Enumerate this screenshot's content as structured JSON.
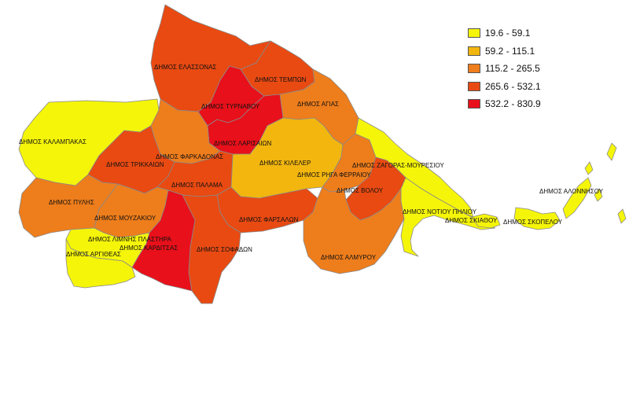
{
  "legend": {
    "classes": [
      {
        "label": "19.6 - 59.1",
        "color": "#f5f50a"
      },
      {
        "label": "59.2 - 115.1",
        "color": "#f2b60e"
      },
      {
        "label": "115.2 - 265.5",
        "color": "#ee7d1c"
      },
      {
        "label": "265.6 - 532.1",
        "color": "#e84a12"
      },
      {
        "label": "532.2 - 830.9",
        "color": "#e8101a"
      }
    ]
  },
  "municipalities": [
    {
      "id": "elassona",
      "name": "ΔΗΜΟΣ ΕΛΑΣΣΟΝΑΣ",
      "class": 3
    },
    {
      "id": "tempi",
      "name": "ΔΗΜΟΣ ΤΕΜΠΩΝ",
      "class": 3
    },
    {
      "id": "agia",
      "name": "ΔΗΜΟΣ ΑΓΙΑΣ",
      "class": 2
    },
    {
      "id": "tyrnavos",
      "name": "ΔΗΜΟΣ ΤΥΡΝΑΒΟΥ",
      "class": 4
    },
    {
      "id": "larisa",
      "name": "ΔΗΜΟΣ ΛΑΡΙΣΑΙΩΝ",
      "class": 4
    },
    {
      "id": "kalampaka",
      "name": "ΔΗΜΟΣ ΚΑΛΑΜΠΑΚΑΣ",
      "class": 0
    },
    {
      "id": "farkadona",
      "name": "ΔΗΜΟΣ ΦΑΡΚΑΔΟΝΑΣ",
      "class": 2
    },
    {
      "id": "kileler",
      "name": "ΔΗΜΟΣ ΚΙΛΕΛΕΡ",
      "class": 1
    },
    {
      "id": "trikkaion",
      "name": "ΔΗΜΟΣ ΤΡΙΚΚΑΙΩΝ",
      "class": 3
    },
    {
      "id": "zagora",
      "name": "ΔΗΜΟΣ ΖΑΓΟΡΑΣ-ΜΟΥΡΕΣΙΟΥ",
      "class": 0
    },
    {
      "id": "rigas",
      "name": "ΔΗΜΟΣ ΡΗΓΑ ΦΕΡΡΑΙΟΥ",
      "class": 2
    },
    {
      "id": "palama",
      "name": "ΔΗΜΟΣ ΠΑΛΑΜΑ",
      "class": 3
    },
    {
      "id": "volos",
      "name": "ΔΗΜΟΣ ΒΟΛΟΥ",
      "class": 3
    },
    {
      "id": "pyli",
      "name": "ΔΗΜΟΣ ΠΥΛΗΣ",
      "class": 2
    },
    {
      "id": "mouzaki",
      "name": "ΔΗΜΟΣ ΜΟΥΖΑΚΙΟΥ",
      "class": 2
    },
    {
      "id": "farsala",
      "name": "ΔΗΜΟΣ ΦΑΡΣΑΛΩΝ",
      "class": 3
    },
    {
      "id": "notio",
      "name": "ΔΗΜΟΣ ΝΟΤΙΟΥ ΠΗΛΙΟΥ",
      "class": 0
    },
    {
      "id": "alonnisos",
      "name": "ΔΗΜΟΣ ΑΛΟΝΝΗΣΟΥ",
      "class": 0
    },
    {
      "id": "skiathos",
      "name": "ΔΗΜΟΣ ΣΚΙΑΘΟΥ",
      "class": 0
    },
    {
      "id": "skopelos",
      "name": "ΔΗΜΟΣ ΣΚΟΠΕΛΟΥ",
      "class": 0
    },
    {
      "id": "plastira",
      "name": "ΔΗΜΟΣ ΛΙΜΝΗΣ ΠΛΑΣΤΗΡΑ",
      "class": 0
    },
    {
      "id": "karditsa",
      "name": "ΔΗΜΟΣ ΚΑΡΔΙΤΣΑΣ",
      "class": 4
    },
    {
      "id": "sofades",
      "name": "ΔΗΜΟΣ ΣΟΦΑΔΩΝ",
      "class": 3
    },
    {
      "id": "argithea",
      "name": "ΔΗΜΟΣ ΑΡΓΙΘΕΑΣ",
      "class": 0
    },
    {
      "id": "almyros",
      "name": "ΔΗΜΟΣ ΑΛΜΥΡΟΥ",
      "class": 2
    }
  ]
}
